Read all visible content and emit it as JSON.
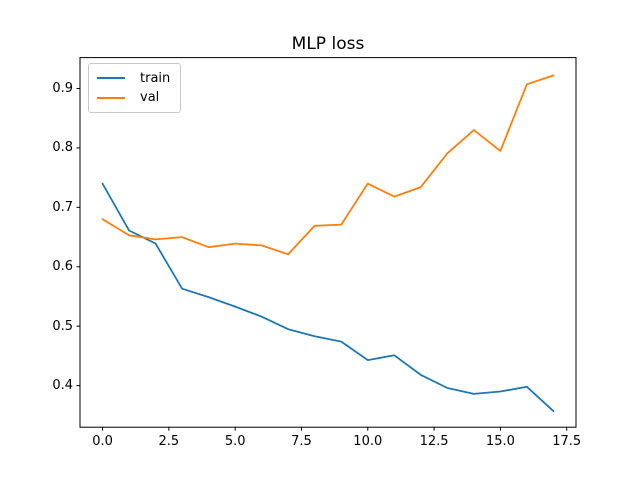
{
  "figure": {
    "background": "#ffffff"
  },
  "chart_data": {
    "type": "line",
    "title": "MLP loss",
    "xlabel": "",
    "ylabel": "",
    "grid": false,
    "legend_position": "upper left",
    "axis_color": "#000000",
    "text_color": "#000000",
    "xlim": [
      -0.85,
      17.85
    ],
    "ylim": [
      0.33,
      0.952
    ],
    "x": [
      0,
      1,
      2,
      3,
      4,
      5,
      6,
      7,
      8,
      9,
      10,
      11,
      12,
      13,
      14,
      15,
      16,
      17
    ],
    "series": [
      {
        "name": "train",
        "color": "#1f77b4",
        "values": [
          0.74,
          0.661,
          0.639,
          0.563,
          0.549,
          0.533,
          0.516,
          0.495,
          0.483,
          0.474,
          0.443,
          0.451,
          0.418,
          0.396,
          0.386,
          0.39,
          0.398,
          0.357
        ]
      },
      {
        "name": "val",
        "color": "#ff7f0e",
        "values": [
          0.68,
          0.653,
          0.646,
          0.65,
          0.633,
          0.639,
          0.636,
          0.621,
          0.669,
          0.671,
          0.74,
          0.718,
          0.734,
          0.791,
          0.83,
          0.795,
          0.907,
          0.922
        ]
      }
    ],
    "xticks": {
      "values": [
        0,
        2.5,
        5,
        7.5,
        10,
        12.5,
        15,
        17.5
      ],
      "labels": [
        "0.0",
        "2.5",
        "5.0",
        "7.5",
        "10.0",
        "12.5",
        "15.0",
        "17.5"
      ]
    },
    "yticks": {
      "values": [
        0.4,
        0.5,
        0.6,
        0.7,
        0.8,
        0.9
      ],
      "labels": [
        "0.4",
        "0.5",
        "0.6",
        "0.7",
        "0.8",
        "0.9"
      ]
    }
  }
}
